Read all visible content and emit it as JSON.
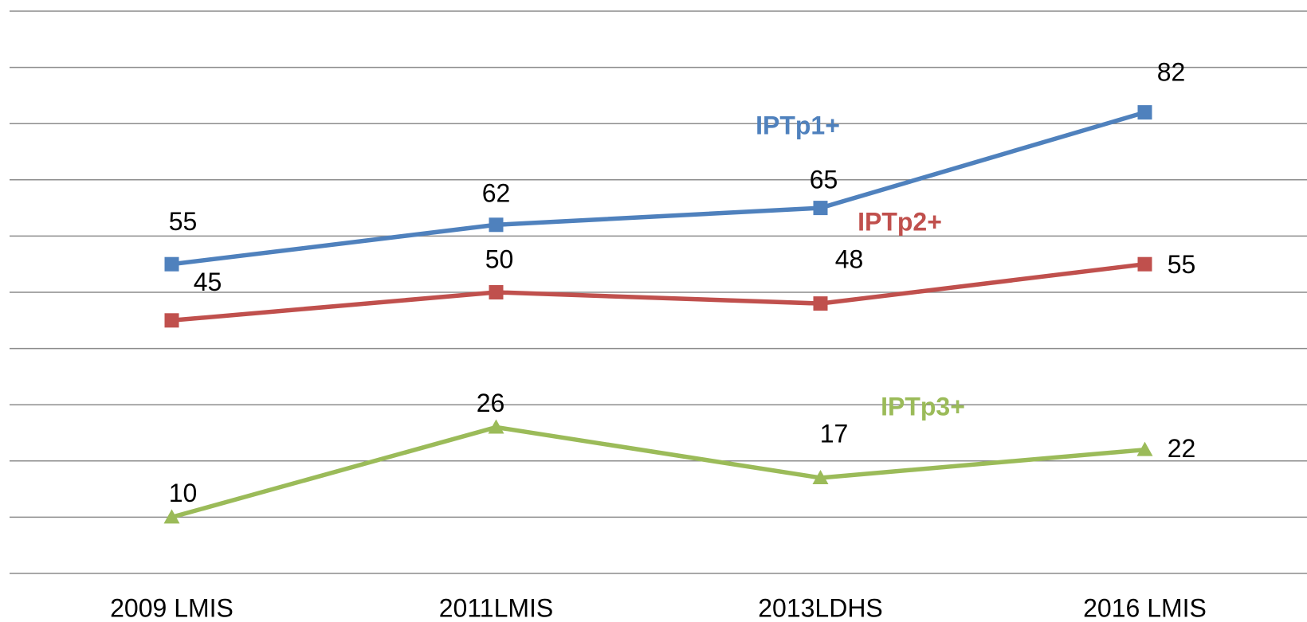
{
  "chart_data": {
    "type": "line",
    "categories": [
      "2009 LMIS",
      "2011LMIS",
      "2013LDHS",
      "2016 LMIS"
    ],
    "series": [
      {
        "name": "IPTp1+",
        "color": "#4f81bd",
        "marker": "square",
        "values": [
          55,
          62,
          65,
          82
        ]
      },
      {
        "name": "IPTp2+",
        "color": "#c0504d",
        "marker": "square",
        "values": [
          45,
          50,
          48,
          55
        ]
      },
      {
        "name": "IPTp3+",
        "color": "#9bbb59",
        "marker": "triangle",
        "values": [
          10,
          26,
          17,
          22
        ]
      }
    ],
    "ylim": [
      0,
      100
    ],
    "yticks": [
      0,
      10,
      20,
      30,
      40,
      50,
      60,
      70,
      80,
      90,
      100
    ],
    "grid": true
  }
}
